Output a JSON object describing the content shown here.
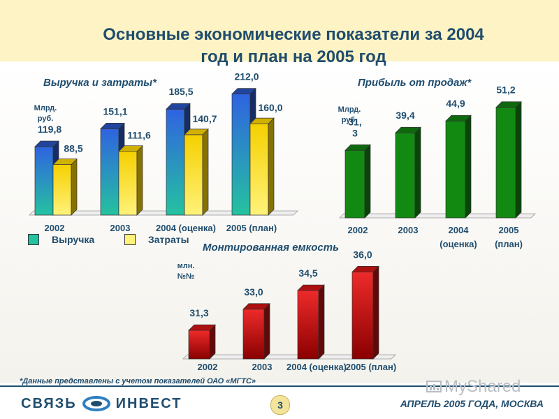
{
  "title_line1": "Основные экономические показатели за 2004",
  "title_line2": "год и план на 2005 год",
  "footnote": "*Данные представлены с учетом показателей ОАО «МГТС»",
  "page_number": "3",
  "footer_date": "АПРЕЛЬ 2005 ГОДА, МОСКВА",
  "logo": {
    "left": "СВЯЗЬ",
    "right": "ИНВЕСТ"
  },
  "watermark": "MyShared",
  "colors": {
    "title": "#1f4d6e",
    "revenue_top": "#2f63e0",
    "revenue_bottom": "#25c2a0",
    "costs_top": "#f5d000",
    "costs_bottom": "#fff27a",
    "profit": "#128a12",
    "capacity": "#d81414"
  },
  "chart_data": [
    {
      "type": "bar",
      "title": "Выручка и затраты*",
      "unit": [
        "Млрд.",
        "руб."
      ],
      "categories": [
        "2002",
        "2003",
        "2004 (оценка)",
        "2005 (план)"
      ],
      "series": [
        {
          "name": "Выручка",
          "values": [
            119.8,
            151.1,
            185.5,
            212.0
          ],
          "labels": [
            "119,8",
            "151,1",
            "185,5",
            "212,0"
          ]
        },
        {
          "name": "Затраты",
          "values": [
            88.5,
            111.6,
            140.7,
            160.0
          ],
          "labels": [
            "88,5",
            "111,6",
            "140,7",
            "160,0"
          ]
        }
      ],
      "ylim": [
        0,
        220
      ],
      "legend": "bottom-left",
      "grid": false
    },
    {
      "type": "bar",
      "title": "Прибыль от продаж*",
      "unit": [
        "Млрд.",
        "руб."
      ],
      "categories": [
        [
          "2002"
        ],
        [
          "2003"
        ],
        [
          "2004",
          "(оценка)"
        ],
        [
          "2005",
          "(план)"
        ]
      ],
      "values": [
        31.3,
        39.4,
        44.9,
        51.2
      ],
      "labels": [
        [
          "31,",
          "3"
        ],
        [
          "39,4"
        ],
        [
          "44,9"
        ],
        [
          "51,2"
        ]
      ],
      "ylim": [
        0,
        55
      ],
      "grid": false
    },
    {
      "type": "bar",
      "title": "Монтированная емкость",
      "unit": [
        "млн.",
        "№№"
      ],
      "categories": [
        "2002",
        "2003",
        "2004 (оценка)",
        "2005 (план)"
      ],
      "values": [
        31.3,
        33.0,
        34.5,
        36.0
      ],
      "labels": [
        "31,3",
        "33,0",
        "34,5",
        "36,0"
      ],
      "ylim": [
        29.0,
        36.3
      ],
      "grid": false
    }
  ]
}
